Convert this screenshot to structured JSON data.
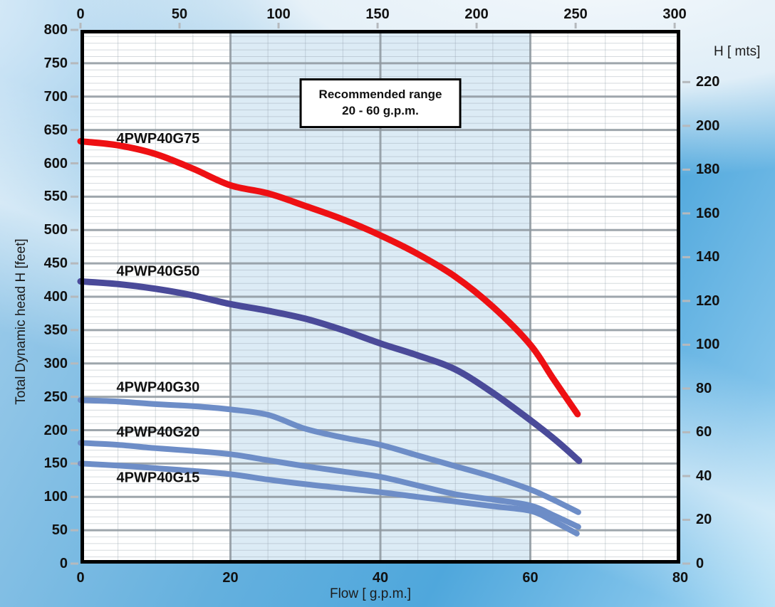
{
  "chart_data": {
    "type": "line",
    "title": "",
    "xlabel": "Flow [ g.p.m.]",
    "ylabel_left": "Total Dynamic head H [feet]",
    "ylabel_right": "H [ mts]",
    "x_axis_gpm": {
      "min": 0,
      "max": 80,
      "ticks": [
        0,
        20,
        40,
        60,
        80
      ]
    },
    "top_axis_lpm": {
      "ticks": [
        0,
        50,
        100,
        150,
        200,
        250,
        300
      ]
    },
    "left_axis_feet": {
      "min": 0,
      "max": 800,
      "ticks": [
        800,
        750,
        700,
        650,
        600,
        550,
        500,
        450,
        400,
        350,
        300,
        250,
        200,
        150,
        100,
        50,
        0
      ]
    },
    "right_axis_m": {
      "ticks": [
        220,
        200,
        180,
        160,
        140,
        120,
        100,
        80,
        60,
        40,
        20,
        0
      ]
    },
    "grid": {
      "minor_x_step_gpm": 5,
      "major_x_step_gpm": 20,
      "minor_y_step_feet": 10,
      "major_y_step_feet": 50,
      "grid_on": true
    },
    "recommended_range_gpm": [
      20,
      60
    ],
    "annotation": {
      "line1": "Recommended range",
      "line2": "20 - 60 g.p.m."
    },
    "colors": {
      "band": "#dcebf5",
      "grid_minor": "rgba(145,158,168,0.38)",
      "grid_major": "rgba(141,150,158,0.85)",
      "plot_border": "#000000",
      "plot_bg": "#ffffff",
      "tick_dash": "#b5b9bd",
      "text": "#111111",
      "red": "#ee1013",
      "navy": "#4a4a99",
      "steel_blue": "#6d8dc7"
    },
    "series": [
      {
        "name": "4PWP40G75",
        "color": "#ee1013",
        "x_gpm": [
          0,
          5,
          10,
          15,
          20,
          25,
          30,
          35,
          40,
          45,
          50,
          55,
          60,
          63,
          66.3
        ],
        "y_feet": [
          633,
          627,
          614,
          592,
          567,
          555,
          536,
          516,
          492,
          464,
          430,
          385,
          328,
          278,
          224
        ],
        "label_x_gpm": 4.8,
        "label_y_feet": 636
      },
      {
        "name": "4PWP40G50",
        "color": "#4a4a99",
        "x_gpm": [
          0,
          5,
          10,
          15,
          20,
          25,
          30,
          35,
          40,
          45,
          50,
          55,
          60,
          63.5,
          66.5
        ],
        "y_feet": [
          423,
          419,
          412,
          402,
          389,
          379,
          367,
          350,
          330,
          312,
          291,
          256,
          215,
          184,
          154
        ],
        "label_x_gpm": 4.8,
        "label_y_feet": 437
      },
      {
        "name": "4PWP40G30",
        "color": "#6d8dc7",
        "x_gpm": [
          0,
          5,
          10,
          15,
          20,
          25,
          30,
          35,
          40,
          45,
          50,
          55,
          60,
          63,
          66.4
        ],
        "y_feet": [
          245,
          243,
          239,
          236,
          231,
          223,
          202,
          189,
          178,
          162,
          146,
          130,
          111,
          96,
          77
        ],
        "label_x_gpm": 4.8,
        "label_y_feet": 263
      },
      {
        "name": "4PWP40G20",
        "color": "#6d8dc7",
        "x_gpm": [
          0,
          5,
          10,
          15,
          20,
          25,
          30,
          35,
          40,
          45,
          50,
          55,
          60,
          63,
          66.4
        ],
        "y_feet": [
          181,
          178,
          173,
          169,
          164,
          155,
          146,
          138,
          130,
          117,
          104,
          96,
          87,
          73,
          55
        ],
        "label_x_gpm": 4.8,
        "label_y_feet": 196
      },
      {
        "name": "4PWP40G15",
        "color": "#6d8dc7",
        "x_gpm": [
          0,
          5,
          10,
          15,
          20,
          25,
          30,
          35,
          40,
          45,
          50,
          55,
          60,
          63,
          66.2
        ],
        "y_feet": [
          150,
          147,
          143,
          139,
          134,
          126,
          119,
          113,
          107,
          100,
          93,
          86,
          79,
          64,
          45
        ],
        "label_x_gpm": 4.8,
        "label_y_feet": 128
      }
    ]
  }
}
